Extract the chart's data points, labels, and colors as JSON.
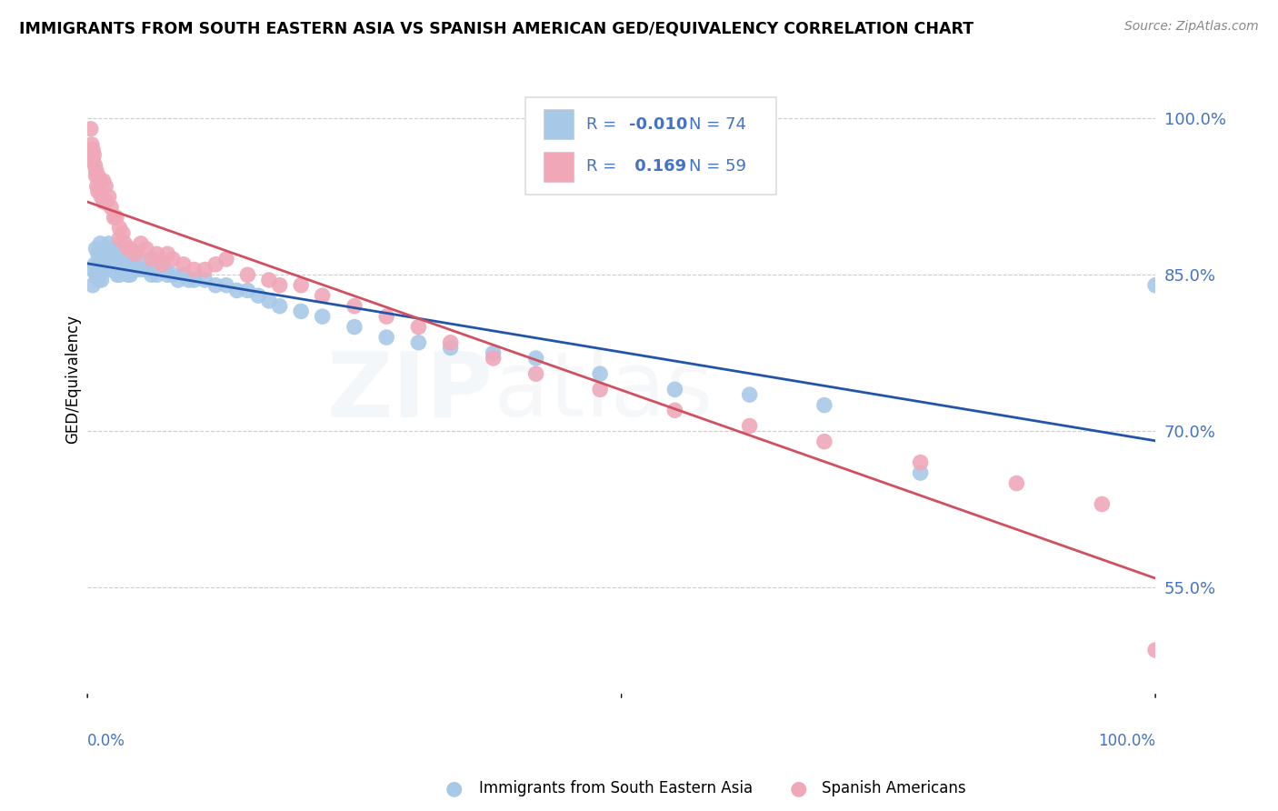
{
  "title": "IMMIGRANTS FROM SOUTH EASTERN ASIA VS SPANISH AMERICAN GED/EQUIVALENCY CORRELATION CHART",
  "source": "Source: ZipAtlas.com",
  "ylabel": "GED/Equivalency",
  "ytick_vals": [
    0.55,
    0.7,
    0.85,
    1.0
  ],
  "ytick_labels": [
    "55.0%",
    "70.0%",
    "85.0%",
    "100.0%"
  ],
  "legend_r_blue": "-0.010",
  "legend_n_blue": "74",
  "legend_r_pink": "0.169",
  "legend_n_pink": "59",
  "blue_color": "#a8c8e8",
  "pink_color": "#f0a8b8",
  "blue_line_color": "#2255aa",
  "pink_line_color": "#d05060",
  "text_color": "#4472c4",
  "blue_points_x": [
    0.005,
    0.005,
    0.007,
    0.008,
    0.008,
    0.01,
    0.01,
    0.01,
    0.01,
    0.012,
    0.012,
    0.013,
    0.013,
    0.015,
    0.015,
    0.015,
    0.017,
    0.017,
    0.018,
    0.018,
    0.02,
    0.02,
    0.022,
    0.022,
    0.025,
    0.025,
    0.027,
    0.028,
    0.03,
    0.03,
    0.033,
    0.035,
    0.037,
    0.038,
    0.04,
    0.04,
    0.043,
    0.045,
    0.048,
    0.05,
    0.055,
    0.06,
    0.063,
    0.065,
    0.07,
    0.073,
    0.075,
    0.08,
    0.085,
    0.09,
    0.095,
    0.1,
    0.11,
    0.12,
    0.13,
    0.14,
    0.15,
    0.16,
    0.17,
    0.18,
    0.2,
    0.22,
    0.25,
    0.28,
    0.31,
    0.34,
    0.38,
    0.42,
    0.48,
    0.55,
    0.62,
    0.69,
    0.78,
    1.0
  ],
  "blue_points_y": [
    0.855,
    0.84,
    0.86,
    0.875,
    0.85,
    0.87,
    0.86,
    0.855,
    0.845,
    0.88,
    0.865,
    0.855,
    0.845,
    0.87,
    0.86,
    0.855,
    0.875,
    0.86,
    0.87,
    0.855,
    0.88,
    0.865,
    0.875,
    0.855,
    0.87,
    0.855,
    0.865,
    0.85,
    0.87,
    0.85,
    0.86,
    0.855,
    0.87,
    0.85,
    0.865,
    0.85,
    0.86,
    0.855,
    0.865,
    0.855,
    0.855,
    0.85,
    0.865,
    0.85,
    0.86,
    0.855,
    0.85,
    0.85,
    0.845,
    0.85,
    0.845,
    0.845,
    0.845,
    0.84,
    0.84,
    0.835,
    0.835,
    0.83,
    0.825,
    0.82,
    0.815,
    0.81,
    0.8,
    0.79,
    0.785,
    0.78,
    0.775,
    0.77,
    0.755,
    0.74,
    0.735,
    0.725,
    0.66,
    0.84
  ],
  "pink_points_x": [
    0.003,
    0.004,
    0.005,
    0.005,
    0.006,
    0.007,
    0.008,
    0.008,
    0.009,
    0.01,
    0.01,
    0.012,
    0.013,
    0.015,
    0.015,
    0.017,
    0.018,
    0.02,
    0.022,
    0.025,
    0.027,
    0.03,
    0.03,
    0.033,
    0.035,
    0.038,
    0.04,
    0.045,
    0.05,
    0.055,
    0.06,
    0.065,
    0.07,
    0.075,
    0.08,
    0.09,
    0.1,
    0.11,
    0.12,
    0.13,
    0.15,
    0.17,
    0.18,
    0.2,
    0.22,
    0.25,
    0.28,
    0.31,
    0.34,
    0.38,
    0.42,
    0.48,
    0.55,
    0.62,
    0.69,
    0.78,
    0.87,
    0.95,
    1.0
  ],
  "pink_points_y": [
    0.99,
    0.975,
    0.97,
    0.96,
    0.965,
    0.955,
    0.95,
    0.945,
    0.935,
    0.945,
    0.93,
    0.94,
    0.925,
    0.94,
    0.92,
    0.935,
    0.92,
    0.925,
    0.915,
    0.905,
    0.905,
    0.895,
    0.885,
    0.89,
    0.88,
    0.875,
    0.875,
    0.87,
    0.88,
    0.875,
    0.865,
    0.87,
    0.86,
    0.87,
    0.865,
    0.86,
    0.855,
    0.855,
    0.86,
    0.865,
    0.85,
    0.845,
    0.84,
    0.84,
    0.83,
    0.82,
    0.81,
    0.8,
    0.785,
    0.77,
    0.755,
    0.74,
    0.72,
    0.705,
    0.69,
    0.67,
    0.65,
    0.63,
    0.49
  ],
  "xlim": [
    0.0,
    1.0
  ],
  "ylim": [
    0.45,
    1.05
  ],
  "watermark_zip_color": "#b0c8e0",
  "watermark_atlas_color": "#b8c8d8"
}
